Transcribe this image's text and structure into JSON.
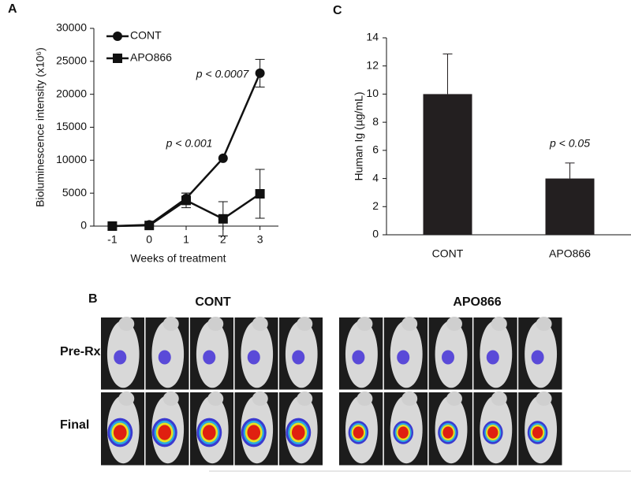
{
  "chart_data": [
    {
      "type": "line",
      "panel_label": "A",
      "xlabel": "Weeks of treatment",
      "ylabel": "Bioluminescence intensity (x10⁶)",
      "x": [
        -1,
        0,
        1,
        2,
        3
      ],
      "xlim": [
        -1.5,
        3.5
      ],
      "xticks": [
        -1,
        0,
        1,
        2,
        3
      ],
      "ylim": [
        0,
        30000
      ],
      "yticks": [
        0,
        5000,
        10000,
        15000,
        20000,
        25000,
        30000
      ],
      "legend": "upper left",
      "series": [
        {
          "name": "CONT",
          "color": "#111111",
          "marker": "circle",
          "values": [
            0,
            200,
            4200,
            10300,
            23200
          ],
          "errors": [
            0,
            0,
            800,
            0,
            2100
          ]
        },
        {
          "name": "APO866",
          "color": "#111111",
          "marker": "square",
          "values": [
            0,
            100,
            3900,
            1100,
            4900
          ],
          "errors": [
            0,
            0,
            1100,
            2600,
            3700
          ]
        }
      ],
      "annotations": [
        "p < 0.001",
        "p < 0.0007"
      ]
    },
    {
      "type": "bar",
      "panel_label": "C",
      "ylabel": "Human Ig (µg/mL)",
      "categories": [
        "CONT",
        "APO866"
      ],
      "values": [
        10,
        4
      ],
      "errors": [
        2.85,
        1.1
      ],
      "color": "#231f20",
      "ylim": [
        0,
        14
      ],
      "yticks": [
        0,
        2,
        4,
        6,
        8,
        10,
        12,
        14
      ],
      "annotations": [
        "p < 0.05"
      ]
    }
  ],
  "panel_b": {
    "label": "B",
    "groups": [
      "CONT",
      "APO866"
    ],
    "rows": [
      "Pre-Rx",
      "Final"
    ]
  }
}
